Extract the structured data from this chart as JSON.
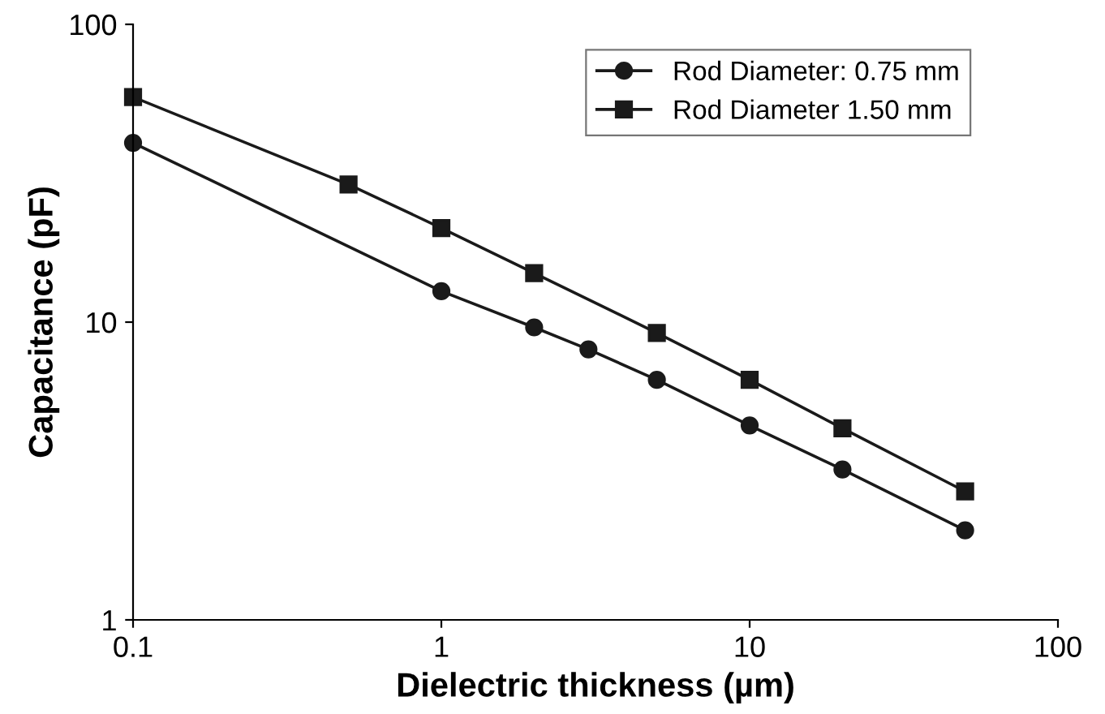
{
  "chart_data": {
    "type": "line",
    "xlabel": "Dielectric thickness (µm)",
    "ylabel": "Capacitance (pF)",
    "log": "xy",
    "xlim": [
      0.1,
      100
    ],
    "xticks": [
      0.1,
      1,
      10,
      100
    ],
    "ylim": [
      1,
      100
    ],
    "yticks": [
      1,
      10,
      100
    ],
    "grid": false,
    "legend": "top right",
    "line_style": "solid",
    "series": [
      {
        "name": "Rod Diameter: 0.75 mm",
        "color": "#1a1a1a",
        "marker": "circle",
        "x": [
          0.1,
          1,
          2,
          3,
          5,
          10,
          20,
          50
        ],
        "values": [
          40,
          12.7,
          9.6,
          8.1,
          6.4,
          4.5,
          3.2,
          2.0
        ]
      },
      {
        "name": "Rod Diameter 1.50 mm",
        "color": "#1a1a1a",
        "marker": "square",
        "x": [
          0.1,
          0.5,
          1,
          2,
          5,
          10,
          20,
          50
        ],
        "values": [
          57,
          29,
          20.7,
          14.6,
          9.2,
          6.4,
          4.4,
          2.7
        ]
      }
    ]
  }
}
